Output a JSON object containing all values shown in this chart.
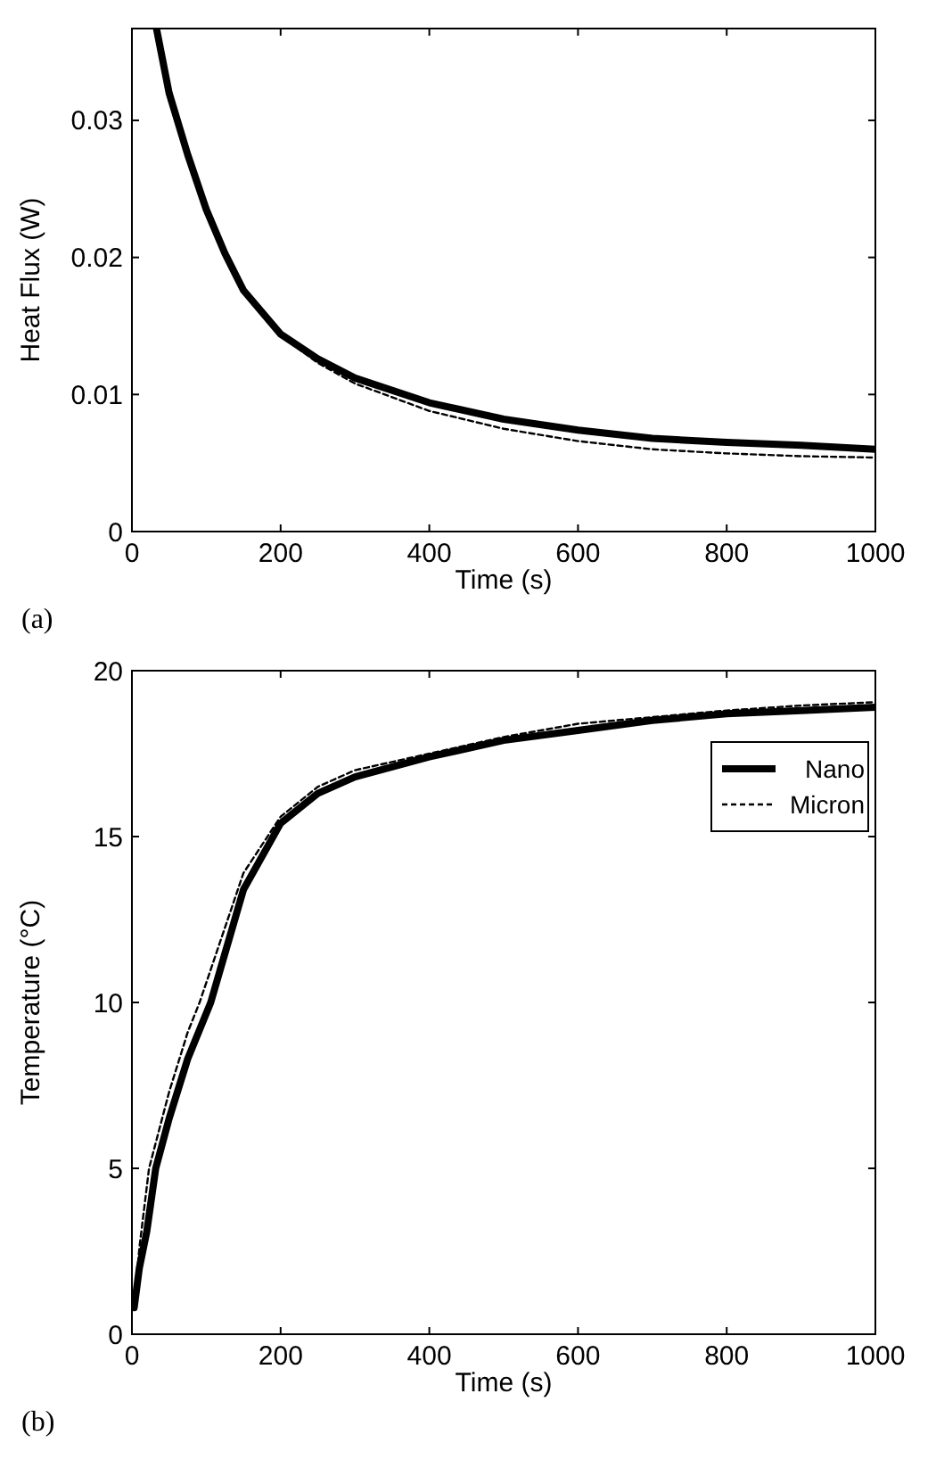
{
  "chart_data": [
    {
      "type": "line",
      "xlabel": "Time (s)",
      "ylabel": "Heat Flux (W)",
      "annotations": [
        "(a)"
      ],
      "xlim": [
        0,
        1000
      ],
      "ylim": [
        0,
        0.0367
      ],
      "xticks": [
        0,
        200,
        400,
        600,
        800,
        1000
      ],
      "yticks": [
        0,
        0.01,
        0.02,
        0.03
      ],
      "grid": false,
      "legend": false,
      "series": [
        {
          "color": "#000000",
          "line_style": "solid",
          "x": [
            33,
            50,
            75,
            100,
            125,
            150,
            200,
            250,
            300,
            400,
            500,
            600,
            700,
            800,
            900,
            1000
          ],
          "values": [
            0.0367,
            0.032,
            0.0275,
            0.0235,
            0.0203,
            0.0176,
            0.0144,
            0.0126,
            0.0112,
            0.0094,
            0.0082,
            0.0074,
            0.0068,
            0.0065,
            0.0063,
            0.006
          ]
        },
        {
          "color": "#000000",
          "line_style": "dashed",
          "x": [
            31,
            50,
            75,
            100,
            125,
            150,
            200,
            250,
            300,
            400,
            500,
            600,
            700,
            800,
            900,
            1000
          ],
          "values": [
            0.0367,
            0.0318,
            0.0273,
            0.0233,
            0.0202,
            0.0175,
            0.0143,
            0.0123,
            0.0108,
            0.0088,
            0.0075,
            0.0066,
            0.006,
            0.0057,
            0.0055,
            0.0054
          ]
        }
      ]
    },
    {
      "type": "line",
      "xlabel": "Time (s)",
      "ylabel": "Temperature (°C)",
      "annotations": [
        "(b)"
      ],
      "xlim": [
        0,
        1000
      ],
      "ylim": [
        0,
        20
      ],
      "xticks": [
        0,
        200,
        400,
        600,
        800,
        1000
      ],
      "yticks": [
        0,
        5,
        10,
        15,
        20
      ],
      "grid": false,
      "legend": "top right",
      "series": [
        {
          "name": "Nano",
          "color": "#000000",
          "line_style": "solid",
          "x": [
            3,
            10,
            20,
            32,
            50,
            75,
            106,
            150,
            200,
            250,
            300,
            400,
            500,
            600,
            700,
            800,
            900,
            1000
          ],
          "values": [
            0.8,
            2.0,
            3.1,
            5,
            6.5,
            8.3,
            10,
            13.4,
            15.4,
            16.3,
            16.8,
            17.4,
            17.9,
            18.2,
            18.5,
            18.7,
            18.8,
            18.9
          ]
        },
        {
          "name": "Micron",
          "color": "#000000",
          "line_style": "dashed",
          "x": [
            3,
            10,
            23,
            50,
            75,
            91,
            150,
            200,
            250,
            300,
            400,
            500,
            600,
            700,
            800,
            900,
            1000
          ],
          "values": [
            0.8,
            2.6,
            5,
            7.3,
            9.1,
            10,
            13.9,
            15.6,
            16.5,
            17,
            17.5,
            18,
            18.4,
            18.6,
            18.8,
            18.95,
            19.05
          ]
        }
      ]
    }
  ]
}
